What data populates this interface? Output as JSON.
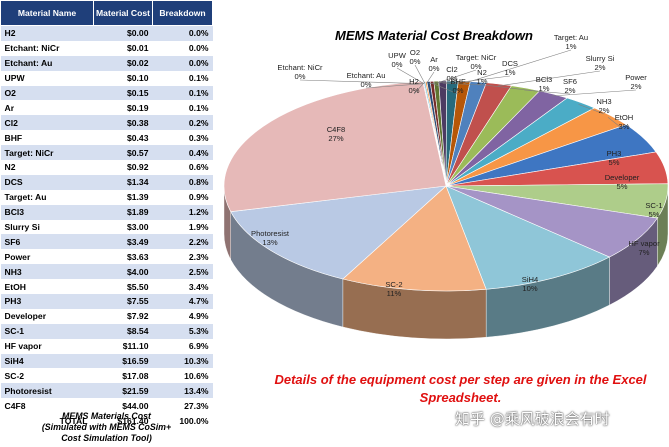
{
  "table": {
    "headers": [
      "Material Name",
      "Material Cost",
      "Breakdown"
    ],
    "rows": [
      [
        "H2",
        "$0.00",
        "0.0%"
      ],
      [
        "Etchant: NiCr",
        "$0.01",
        "0.0%"
      ],
      [
        "Etchant: Au",
        "$0.02",
        "0.0%"
      ],
      [
        "UPW",
        "$0.10",
        "0.1%"
      ],
      [
        "O2",
        "$0.15",
        "0.1%"
      ],
      [
        "Ar",
        "$0.19",
        "0.1%"
      ],
      [
        "Cl2",
        "$0.38",
        "0.2%"
      ],
      [
        "BHF",
        "$0.43",
        "0.3%"
      ],
      [
        "Target: NiCr",
        "$0.57",
        "0.4%"
      ],
      [
        "N2",
        "$0.92",
        "0.6%"
      ],
      [
        "DCS",
        "$1.34",
        "0.8%"
      ],
      [
        "Target: Au",
        "$1.39",
        "0.9%"
      ],
      [
        "BCl3",
        "$1.89",
        "1.2%"
      ],
      [
        "Slurry Si",
        "$3.00",
        "1.9%"
      ],
      [
        "SF6",
        "$3.49",
        "2.2%"
      ],
      [
        "Power",
        "$3.63",
        "2.3%"
      ],
      [
        "NH3",
        "$4.00",
        "2.5%"
      ],
      [
        "EtOH",
        "$5.50",
        "3.4%"
      ],
      [
        "PH3",
        "$7.55",
        "4.7%"
      ],
      [
        "Developer",
        "$7.92",
        "4.9%"
      ],
      [
        "SC-1",
        "$8.54",
        "5.3%"
      ],
      [
        "HF vapor",
        "$11.10",
        "6.9%"
      ],
      [
        "SiH4",
        "$16.59",
        "10.3%"
      ],
      [
        "SC-2",
        "$17.08",
        "10.6%"
      ],
      [
        "Photoresist",
        "$21.59",
        "13.4%"
      ],
      [
        "C4F8",
        "$44.00",
        "27.3%"
      ]
    ],
    "total": [
      "TOTAL",
      "$161.40",
      "100.0%"
    ],
    "caption": [
      "MEMS Materials Cost",
      "(Simulated with MEMS CoSim+",
      "Cost Simulation Tool)"
    ]
  },
  "note": "Details of the equipment cost per step are given in the Excel Spreadsheet.",
  "watermark": "知乎 @乘风破浪会有时",
  "chart_data": {
    "type": "pie",
    "title": "MEMS Material Cost Breakdown",
    "slices": [
      {
        "label": "H2",
        "value": 0.0,
        "pct": "0%",
        "color": "#4a6fb0"
      },
      {
        "label": "Etchant: NiCr",
        "value": 0.01,
        "pct": "0%",
        "color": "#c0504d"
      },
      {
        "label": "Etchant: Au",
        "value": 0.02,
        "pct": "0%",
        "color": "#9bbb59"
      },
      {
        "label": "UPW",
        "value": 0.1,
        "pct": "0%",
        "color": "#8064a2"
      },
      {
        "label": "O2",
        "value": 0.15,
        "pct": "0%",
        "color": "#4bacc6"
      },
      {
        "label": "Ar",
        "value": 0.19,
        "pct": "0%",
        "color": "#f79646"
      },
      {
        "label": "Cl2",
        "value": 0.38,
        "pct": "0%",
        "color": "#2c4d75"
      },
      {
        "label": "BHF",
        "value": 0.43,
        "pct": "0%",
        "color": "#772c2a"
      },
      {
        "label": "Target: NiCr",
        "value": 0.57,
        "pct": "0%",
        "color": "#5f7530"
      },
      {
        "label": "N2",
        "value": 0.92,
        "pct": "1%",
        "color": "#4d3b62"
      },
      {
        "label": "DCS",
        "value": 1.34,
        "pct": "1%",
        "color": "#276a7c"
      },
      {
        "label": "Target: Au",
        "value": 1.39,
        "pct": "1%",
        "color": "#b65708"
      },
      {
        "label": "BCl3",
        "value": 1.89,
        "pct": "1%",
        "color": "#4f81bd"
      },
      {
        "label": "Slurry Si",
        "value": 3.0,
        "pct": "2%",
        "color": "#c0504d"
      },
      {
        "label": "SF6",
        "value": 3.49,
        "pct": "2%",
        "color": "#9bbb59"
      },
      {
        "label": "Power",
        "value": 3.63,
        "pct": "2%",
        "color": "#8064a2"
      },
      {
        "label": "NH3",
        "value": 4.0,
        "pct": "2%",
        "color": "#4bacc6"
      },
      {
        "label": "EtOH",
        "value": 5.5,
        "pct": "3%",
        "color": "#f79646"
      },
      {
        "label": "PH3",
        "value": 7.55,
        "pct": "5%",
        "color": "#3e76c2"
      },
      {
        "label": "Developer",
        "value": 7.92,
        "pct": "5%",
        "color": "#d8534f"
      },
      {
        "label": "SC-1",
        "value": 8.54,
        "pct": "5%",
        "color": "#aecd8a"
      },
      {
        "label": "HF vapor",
        "value": 11.1,
        "pct": "7%",
        "color": "#a594c6"
      },
      {
        "label": "SiH4",
        "value": 16.59,
        "pct": "10%",
        "color": "#8fc6d8"
      },
      {
        "label": "SC-2",
        "value": 17.08,
        "pct": "11%",
        "color": "#f4b183"
      },
      {
        "label": "Photoresist",
        "value": 21.59,
        "pct": "13%",
        "color": "#b9c9e4"
      },
      {
        "label": "C4F8",
        "value": 44.0,
        "pct": "27%",
        "color": "#e6b9b8"
      }
    ]
  }
}
